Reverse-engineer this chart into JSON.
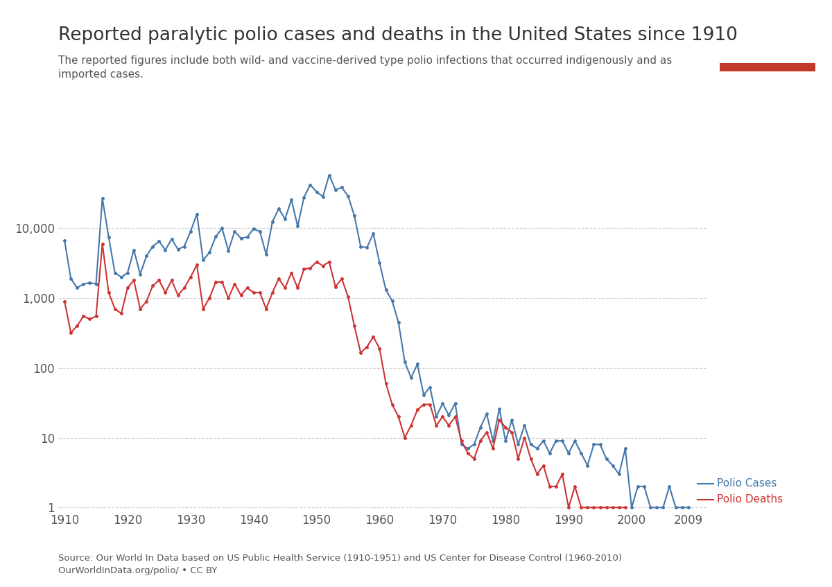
{
  "title": "Reported paralytic polio cases and deaths in the United States since 1910",
  "subtitle": "The reported figures include both wild- and vaccine-derived type polio infections that occurred indigenously and as\nimported cases.",
  "source_text": "Source: Our World In Data based on US Public Health Service (1910-1951) and US Center for Disease Control (1960-2010)\nOurWorldInData.org/polio/ • CC BY",
  "logo_bg": "#1a3a5c",
  "logo_accent": "#c0392b",
  "cases_color": "#4477aa",
  "deaths_color": "#cc3333",
  "background_color": "#ffffff",
  "grid_color": "#cccccc",
  "text_color": "#555555",
  "title_color": "#333333",
  "ylabel_cases": "Polio Cases",
  "ylabel_deaths": "Polio Deaths",
  "cases_data": {
    "1910": 6700,
    "1911": 1900,
    "1912": 1400,
    "1913": 1600,
    "1914": 1650,
    "1915": 1600,
    "1916": 27000,
    "1917": 7500,
    "1918": 2300,
    "1919": 2000,
    "1920": 2300,
    "1921": 4900,
    "1922": 2200,
    "1923": 4000,
    "1924": 5500,
    "1925": 6500,
    "1926": 4900,
    "1927": 7000,
    "1928": 5000,
    "1929": 5500,
    "1930": 9000,
    "1931": 16000,
    "1932": 3500,
    "1933": 4500,
    "1934": 7600,
    "1935": 10000,
    "1936": 4800,
    "1937": 9000,
    "1938": 7200,
    "1939": 7500,
    "1940": 9804,
    "1941": 9000,
    "1942": 4200,
    "1943": 12500,
    "1944": 19000,
    "1945": 13600,
    "1946": 25700,
    "1947": 10700,
    "1948": 27700,
    "1949": 42000,
    "1950": 33300,
    "1951": 28400,
    "1952": 57879,
    "1953": 35600,
    "1954": 38500,
    "1955": 28985,
    "1956": 15140,
    "1957": 5485,
    "1958": 5300,
    "1959": 8425,
    "1960": 3190,
    "1961": 1312,
    "1962": 910,
    "1963": 449,
    "1964": 122,
    "1965": 72,
    "1966": 113,
    "1967": 41,
    "1968": 53,
    "1969": 20,
    "1970": 31,
    "1971": 21,
    "1972": 31,
    "1973": 8,
    "1974": 7,
    "1975": 8,
    "1976": 14,
    "1977": 22,
    "1978": 9,
    "1979": 26,
    "1980": 9,
    "1981": 18,
    "1982": 8,
    "1983": 15,
    "1984": 8,
    "1985": 7,
    "1986": 9,
    "1987": 6,
    "1988": 9,
    "1989": 9,
    "1990": 6,
    "1991": 9,
    "1992": 6,
    "1993": 4,
    "1994": 8,
    "1995": 8,
    "1996": 5,
    "1997": 4,
    "1998": 3,
    "1999": 7,
    "2000": 1,
    "2001": 2,
    "2002": 2,
    "2003": 1,
    "2004": 1,
    "2005": 1,
    "2006": 2,
    "2007": 1,
    "2008": 1,
    "2009": 1
  },
  "deaths_data": {
    "1910": 900,
    "1911": 320,
    "1912": 400,
    "1913": 550,
    "1914": 500,
    "1915": 550,
    "1916": 6000,
    "1917": 1200,
    "1918": 700,
    "1919": 600,
    "1920": 1400,
    "1921": 1800,
    "1922": 700,
    "1923": 900,
    "1924": 1500,
    "1925": 1800,
    "1926": 1200,
    "1927": 1800,
    "1928": 1100,
    "1929": 1400,
    "1930": 2000,
    "1931": 3000,
    "1932": 700,
    "1933": 1000,
    "1934": 1700,
    "1935": 1700,
    "1936": 1000,
    "1937": 1600,
    "1938": 1100,
    "1939": 1400,
    "1940": 1200,
    "1941": 1200,
    "1942": 700,
    "1943": 1200,
    "1944": 1900,
    "1945": 1400,
    "1946": 2300,
    "1947": 1400,
    "1948": 2600,
    "1949": 2700,
    "1950": 3300,
    "1951": 2900,
    "1952": 3300,
    "1953": 1450,
    "1954": 1900,
    "1955": 1043,
    "1956": 400,
    "1957": 165,
    "1958": 200,
    "1959": 280,
    "1960": 190,
    "1961": 60,
    "1962": 30,
    "1963": 20,
    "1964": 10,
    "1965": 15,
    "1966": 25,
    "1967": 30,
    "1968": 30,
    "1969": 15,
    "1970": 20,
    "1971": 15,
    "1972": 20,
    "1973": 9,
    "1974": 6,
    "1975": 5,
    "1976": 9,
    "1977": 12,
    "1978": 7,
    "1979": 18,
    "1980": 14,
    "1981": 12,
    "1982": 5,
    "1983": 10,
    "1984": 5,
    "1985": 3,
    "1986": 4,
    "1987": 2,
    "1988": 2,
    "1989": 3,
    "1990": 1,
    "1991": 2,
    "1992": 1,
    "1993": 1,
    "1994": 1,
    "1995": 1,
    "1996": 1,
    "1997": 1,
    "1998": 1,
    "1999": 1
  },
  "xlim": [
    1909,
    2012
  ],
  "ylim_log": [
    0.9,
    100000
  ],
  "xticks": [
    1910,
    1920,
    1930,
    1940,
    1950,
    1960,
    1970,
    1980,
    1990,
    2000,
    2009
  ],
  "yticks_log": [
    1,
    10,
    100,
    1000,
    10000
  ],
  "ytick_labels": [
    "1",
    "10",
    "100",
    "1,000",
    "10,000"
  ]
}
